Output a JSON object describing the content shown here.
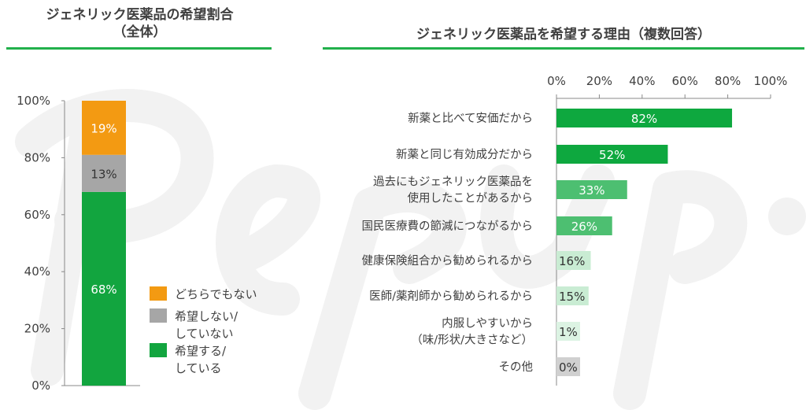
{
  "watermark": "PepUp.",
  "chart_data": [
    {
      "type": "bar",
      "stacked": true,
      "title": "ジェネリック医薬品の希望割合\n（全体）",
      "title_lines": [
        "ジェネリック医薬品の希望割合",
        "（全体）"
      ],
      "categories": [
        "全体"
      ],
      "ylim": [
        0,
        100
      ],
      "yticks": [
        "0%",
        "20%",
        "40%",
        "60%",
        "80%",
        "100%"
      ],
      "series": [
        {
          "name": "希望する/している",
          "legend_lines": [
            "希望する/",
            "している"
          ],
          "values": [
            68
          ],
          "label": "68%",
          "color": "#12a53f"
        },
        {
          "name": "希望しない/していない",
          "legend_lines": [
            "希望しない/",
            "していない"
          ],
          "values": [
            13
          ],
          "label": "13%",
          "color": "#a6a6a6"
        },
        {
          "name": "どちらでもない",
          "legend_lines": [
            "どちらでもない"
          ],
          "values": [
            19
          ],
          "label": "19%",
          "color": "#f39a12"
        }
      ],
      "legend": "bottom-right"
    },
    {
      "type": "bar",
      "orientation": "horizontal",
      "title": "ジェネリック医薬品を希望する理由（複数回答）",
      "xlim": [
        0,
        100
      ],
      "xticks": [
        "0%",
        "20%",
        "40%",
        "60%",
        "80%",
        "100%"
      ],
      "xaxis_position": "top",
      "categories": [
        [
          "新薬と比べて安価だから"
        ],
        [
          "新薬と同じ有効成分だから"
        ],
        [
          "過去にもジェネリック医薬品を",
          "使用したことがあるから"
        ],
        [
          "国民医療費の節減につながるから"
        ],
        [
          "健康保険組合から勧められるから"
        ],
        [
          "医師/薬剤師から勧められるから"
        ],
        [
          "内服しやすいから",
          "（味/形状/大きさなど）"
        ],
        [
          "その他"
        ]
      ],
      "values": [
        82,
        52,
        33,
        26,
        16,
        15,
        1,
        0
      ],
      "labels": [
        "82%",
        "52%",
        "33%",
        "26%",
        "16%",
        "15%",
        "1%",
        "0%"
      ],
      "colors": [
        "#0ea83f",
        "#0ea83f",
        "#4dbf71",
        "#4dbf71",
        "#c9ecd3",
        "#c9ecd3",
        "#dcf3e3",
        "#d0d0d0"
      ],
      "label_colors": [
        "#ffffff",
        "#ffffff",
        "#ffffff",
        "#ffffff",
        "#333333",
        "#333333",
        "#333333",
        "#333333"
      ]
    }
  ]
}
